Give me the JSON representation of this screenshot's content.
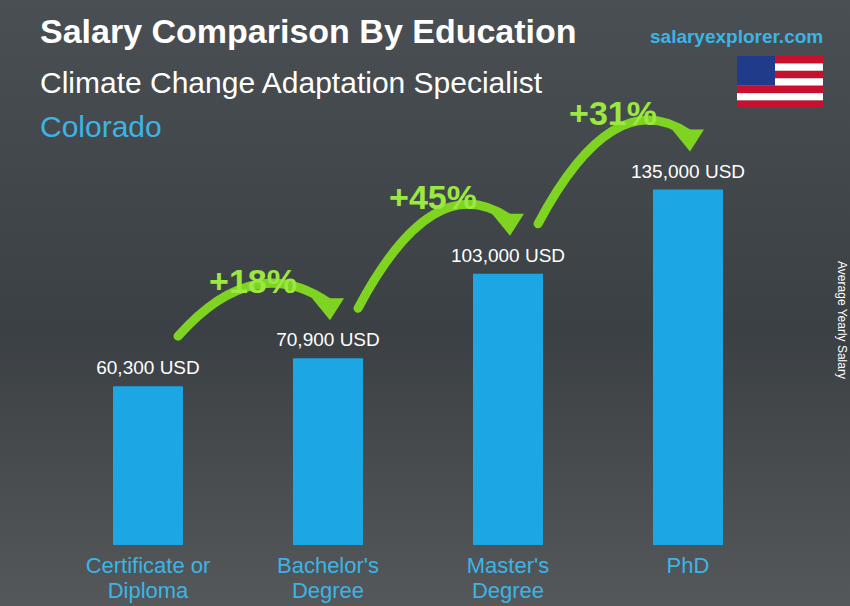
{
  "chart_data": {
    "type": "bar",
    "title": "Salary Comparison By Education",
    "subtitle": "Climate Change Adaptation Specialist",
    "location": "Colorado",
    "source": "salaryexplorer.com",
    "y_label": "Average Yearly Salary",
    "categories": [
      "Certificate or Diploma",
      "Bachelor's Degree",
      "Master's Degree",
      "PhD"
    ],
    "values": [
      60300,
      70900,
      103000,
      135000
    ],
    "value_labels": [
      "60,300 USD",
      "70,900 USD",
      "103,000 USD",
      "135,000 USD"
    ],
    "annotations": [
      "+18%",
      "+45%",
      "+31%"
    ],
    "color": "#1ca6e4",
    "ylim": [
      0,
      150000
    ],
    "data_labels": true,
    "tick_labels": "x",
    "grid": false
  }
}
